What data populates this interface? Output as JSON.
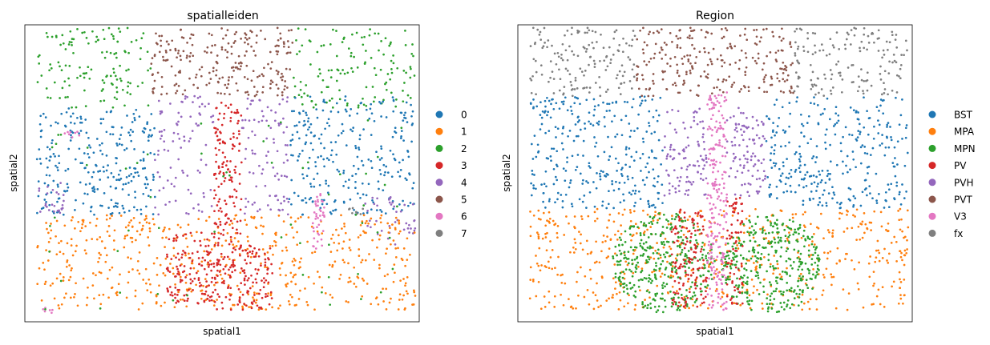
{
  "chart_data": [
    {
      "type": "scatter",
      "title": "spatialleiden",
      "xlabel": "spatial1",
      "ylabel": "spatial2",
      "xticks": [],
      "yticks": [],
      "legend_placement": "right",
      "grid": false,
      "categories": [
        "0",
        "1",
        "2",
        "3",
        "4",
        "5",
        "6",
        "7"
      ],
      "colors": [
        "#1f77b4",
        "#ff7f0e",
        "#2ca02c",
        "#d62728",
        "#9467bd",
        "#8c564b",
        "#e377c2",
        "#7f7f7f"
      ],
      "x_range": [
        0,
        1
      ],
      "y_range": [
        0,
        1
      ],
      "regions": [
        {
          "category": "2",
          "shape": "rect",
          "x": [
            0.03,
            0.32
          ],
          "y": [
            0.72,
            0.99
          ],
          "density": 130
        },
        {
          "category": "2",
          "shape": "rect",
          "x": [
            0.68,
            0.99
          ],
          "y": [
            0.72,
            0.99
          ],
          "density": 130
        },
        {
          "category": "5",
          "shape": "rect",
          "x": [
            0.32,
            0.68
          ],
          "y": [
            0.76,
            0.99
          ],
          "density": 230
        },
        {
          "category": "0",
          "shape": "rect",
          "x": [
            0.03,
            0.33
          ],
          "y": [
            0.36,
            0.72
          ],
          "density": 260
        },
        {
          "category": "0",
          "shape": "rect",
          "x": [
            0.67,
            0.99
          ],
          "y": [
            0.36,
            0.76
          ],
          "density": 260
        },
        {
          "category": "4",
          "shape": "rect",
          "x": [
            0.33,
            0.48
          ],
          "y": [
            0.36,
            0.76
          ],
          "density": 90
        },
        {
          "category": "4",
          "shape": "rect",
          "x": [
            0.55,
            0.67
          ],
          "y": [
            0.36,
            0.76
          ],
          "density": 90
        },
        {
          "category": "4",
          "shape": "rect",
          "x": [
            0.86,
            0.99
          ],
          "y": [
            0.26,
            0.42
          ],
          "density": 40
        },
        {
          "category": "4",
          "shape": "rect",
          "x": [
            0.03,
            0.1
          ],
          "y": [
            0.36,
            0.48
          ],
          "density": 25
        },
        {
          "category": "1",
          "shape": "rect",
          "x": [
            0.03,
            0.99
          ],
          "y": [
            0.04,
            0.36
          ],
          "density": 560
        },
        {
          "category": "3",
          "shape": "rect",
          "x": [
            0.48,
            0.55
          ],
          "y": [
            0.04,
            0.74
          ],
          "density": 210
        },
        {
          "category": "3",
          "shape": "rect",
          "x": [
            0.36,
            0.48
          ],
          "y": [
            0.06,
            0.3
          ],
          "density": 130
        },
        {
          "category": "3",
          "shape": "rect",
          "x": [
            0.55,
            0.63
          ],
          "y": [
            0.04,
            0.26
          ],
          "density": 80
        },
        {
          "category": "6",
          "shape": "rect",
          "x": [
            0.73,
            0.76
          ],
          "y": [
            0.24,
            0.44
          ],
          "density": 40
        },
        {
          "category": "6",
          "shape": "rect",
          "x": [
            0.03,
            0.07
          ],
          "y": [
            0.03,
            0.05
          ],
          "density": 6
        },
        {
          "category": "6",
          "shape": "rect",
          "x": [
            0.09,
            0.14
          ],
          "y": [
            0.62,
            0.64
          ],
          "density": 8
        },
        {
          "category": "7",
          "shape": "rect",
          "x": [
            0.82,
            0.86
          ],
          "y": [
            0.36,
            0.4
          ],
          "density": 8
        },
        {
          "category": "2",
          "shape": "rect",
          "x": [
            0.03,
            0.99
          ],
          "y": [
            0.04,
            0.72
          ],
          "density": 60
        }
      ]
    },
    {
      "type": "scatter",
      "title": "Region",
      "xlabel": "spatial1",
      "ylabel": "spatial2",
      "xticks": [],
      "yticks": [],
      "legend_placement": "right",
      "grid": false,
      "categories": [
        "BST",
        "MPA",
        "MPN",
        "PV",
        "PVH",
        "PVT",
        "V3",
        "fx"
      ],
      "colors": [
        "#1f77b4",
        "#ff7f0e",
        "#2ca02c",
        "#d62728",
        "#9467bd",
        "#8c564b",
        "#e377c2",
        "#7f7f7f"
      ],
      "x_range": [
        0,
        1
      ],
      "y_range": [
        0,
        1
      ],
      "regions": [
        {
          "category": "fx",
          "shape": "rect",
          "x": [
            0.03,
            0.3
          ],
          "y": [
            0.76,
            0.99
          ],
          "density": 150
        },
        {
          "category": "fx",
          "shape": "rect",
          "x": [
            0.7,
            0.99
          ],
          "y": [
            0.76,
            0.99
          ],
          "density": 150
        },
        {
          "category": "PVT",
          "shape": "rect",
          "x": [
            0.3,
            0.7
          ],
          "y": [
            0.76,
            0.99
          ],
          "density": 250
        },
        {
          "category": "BST",
          "shape": "rect",
          "x": [
            0.03,
            0.37
          ],
          "y": [
            0.38,
            0.76
          ],
          "density": 300
        },
        {
          "category": "BST",
          "shape": "rect",
          "x": [
            0.63,
            0.99
          ],
          "y": [
            0.38,
            0.76
          ],
          "density": 300
        },
        {
          "category": "PVH",
          "shape": "rect",
          "x": [
            0.37,
            0.48
          ],
          "y": [
            0.42,
            0.72
          ],
          "density": 100
        },
        {
          "category": "PVH",
          "shape": "rect",
          "x": [
            0.53,
            0.63
          ],
          "y": [
            0.42,
            0.72
          ],
          "density": 100
        },
        {
          "category": "MPA",
          "shape": "rect",
          "x": [
            0.03,
            0.99
          ],
          "y": [
            0.04,
            0.38
          ],
          "density": 600
        },
        {
          "category": "MPN",
          "shape": "ellipse",
          "cx": 0.37,
          "cy": 0.2,
          "rx": 0.13,
          "ry": 0.17,
          "density": 350
        },
        {
          "category": "MPN",
          "shape": "ellipse",
          "cx": 0.64,
          "cy": 0.19,
          "rx": 0.13,
          "ry": 0.17,
          "density": 350
        },
        {
          "category": "PV",
          "shape": "rect",
          "x": [
            0.39,
            0.48
          ],
          "y": [
            0.05,
            0.38
          ],
          "density": 130
        },
        {
          "category": "PV",
          "shape": "rect",
          "x": [
            0.53,
            0.57
          ],
          "y": [
            0.06,
            0.42
          ],
          "density": 70
        },
        {
          "category": "V3",
          "shape": "rect",
          "x": [
            0.48,
            0.53
          ],
          "y": [
            0.04,
            0.78
          ],
          "density": 220
        }
      ]
    }
  ]
}
